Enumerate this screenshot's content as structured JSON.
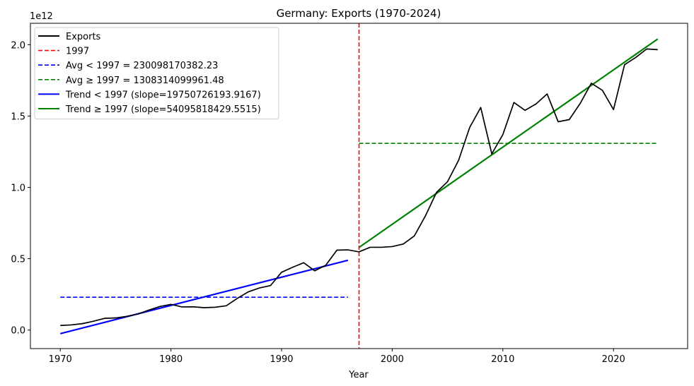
{
  "chart_data": {
    "type": "line",
    "title": "Germany: Exports (1970-2024)",
    "xlabel": "Year",
    "ylabel": "",
    "y_offset_label": "1e12",
    "xlim": [
      1967.3,
      2026.7
    ],
    "ylim": [
      -0.13,
      2.15
    ],
    "x_ticks": [
      1970,
      1980,
      1990,
      2000,
      2010,
      2020
    ],
    "x_tick_labels": [
      "1970",
      "1980",
      "1990",
      "2000",
      "2010",
      "2020"
    ],
    "y_ticks": [
      0.0,
      0.5,
      1.0,
      1.5,
      2.0
    ],
    "y_tick_labels": [
      "0.0",
      "0.5",
      "1.0",
      "1.5",
      "2.0"
    ],
    "grid": false,
    "legend_position": "upper-left",
    "x": [
      1970,
      1971,
      1972,
      1973,
      1974,
      1975,
      1976,
      1977,
      1978,
      1979,
      1980,
      1981,
      1982,
      1983,
      1984,
      1985,
      1986,
      1987,
      1988,
      1989,
      1990,
      1991,
      1992,
      1993,
      1994,
      1995,
      1996,
      1997,
      1998,
      1999,
      2000,
      2001,
      2002,
      2003,
      2004,
      2005,
      2006,
      2007,
      2008,
      2009,
      2010,
      2011,
      2012,
      2013,
      2014,
      2015,
      2016,
      2017,
      2018,
      2019,
      2020,
      2021,
      2022,
      2023,
      2024
    ],
    "series": [
      {
        "name": "Exports",
        "color": "#000000",
        "style": "solid",
        "values": [
          0.032,
          0.036,
          0.045,
          0.062,
          0.082,
          0.085,
          0.096,
          0.112,
          0.14,
          0.165,
          0.18,
          0.162,
          0.163,
          0.157,
          0.16,
          0.17,
          0.222,
          0.268,
          0.295,
          0.312,
          0.405,
          0.44,
          0.472,
          0.415,
          0.455,
          0.56,
          0.562,
          0.548,
          0.58,
          0.58,
          0.585,
          0.603,
          0.66,
          0.8,
          0.965,
          1.04,
          1.19,
          1.42,
          1.56,
          1.235,
          1.37,
          1.595,
          1.54,
          1.585,
          1.655,
          1.46,
          1.475,
          1.59,
          1.73,
          1.68,
          1.545,
          1.86,
          1.91,
          1.97,
          1.965
        ]
      }
    ],
    "reference_lines": [
      {
        "name": "1997",
        "color": "#ff0000",
        "style": "dashed",
        "orientation": "vertical",
        "x": 1997
      },
      {
        "name": "Avg < 1997 = 230098170382.23",
        "color": "#0000ff",
        "style": "dashed",
        "orientation": "horizontal",
        "y": 0.230098,
        "x_range": [
          1970,
          1996
        ]
      },
      {
        "name": "Avg ≥ 1997 = 1308314099961.48",
        "color": "#008000",
        "style": "dashed",
        "orientation": "horizontal",
        "y": 1.308314,
        "x_range": [
          1997,
          2024
        ]
      }
    ],
    "trend_lines": [
      {
        "name": "Trend < 1997 (slope=19750726193.9167)",
        "color": "#0000ff",
        "style": "solid",
        "x_range": [
          1970,
          1996
        ],
        "y_range": [
          -0.025,
          0.489
        ]
      },
      {
        "name": "Trend ≥ 1997 (slope=54095818429.5515)",
        "color": "#008000",
        "style": "solid",
        "x_range": [
          1997,
          2024
        ],
        "y_range": [
          0.579,
          2.04
        ]
      }
    ],
    "legend": [
      {
        "label": "Exports",
        "color": "#000000",
        "style": "solid"
      },
      {
        "label": "1997",
        "color": "#ff0000",
        "style": "dashed"
      },
      {
        "label": "Avg < 1997 = 230098170382.23",
        "color": "#0000ff",
        "style": "dashed"
      },
      {
        "label": "Avg ≥ 1997 = 1308314099961.48",
        "color": "#008000",
        "style": "dashed"
      },
      {
        "label": "Trend < 1997 (slope=19750726193.9167)",
        "color": "#0000ff",
        "style": "solid"
      },
      {
        "label": "Trend ≥ 1997 (slope=54095818429.5515)",
        "color": "#008000",
        "style": "solid"
      }
    ]
  }
}
